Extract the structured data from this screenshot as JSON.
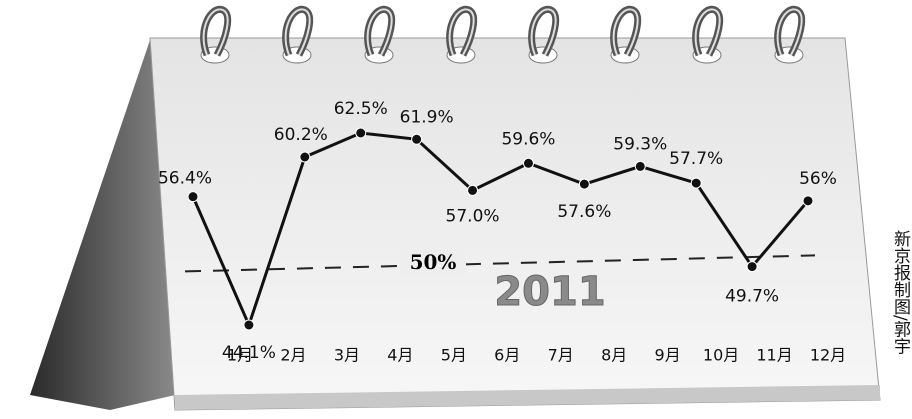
{
  "year": "2011",
  "credit": "新京报制图/郭宇",
  "chart_data": {
    "type": "line",
    "categories": [
      "1月",
      "2月",
      "3月",
      "4月",
      "5月",
      "6月",
      "7月",
      "8月",
      "9月",
      "10月",
      "11月",
      "12月"
    ],
    "series": [
      {
        "name": null,
        "color": "#111111",
        "values": [
          56.4,
          44.1,
          60.2,
          62.5,
          61.9,
          57.0,
          59.6,
          57.6,
          59.3,
          57.7,
          49.7,
          56
        ],
        "value_labels": [
          "56.4%",
          "44.1%",
          "60.2%",
          "62.5%",
          "61.9%",
          "57.0%",
          "59.6%",
          "57.6%",
          "59.3%",
          "57.7%",
          "49.7%",
          "56%"
        ]
      }
    ],
    "reference_line": {
      "value": 50,
      "label": "50%"
    }
  }
}
